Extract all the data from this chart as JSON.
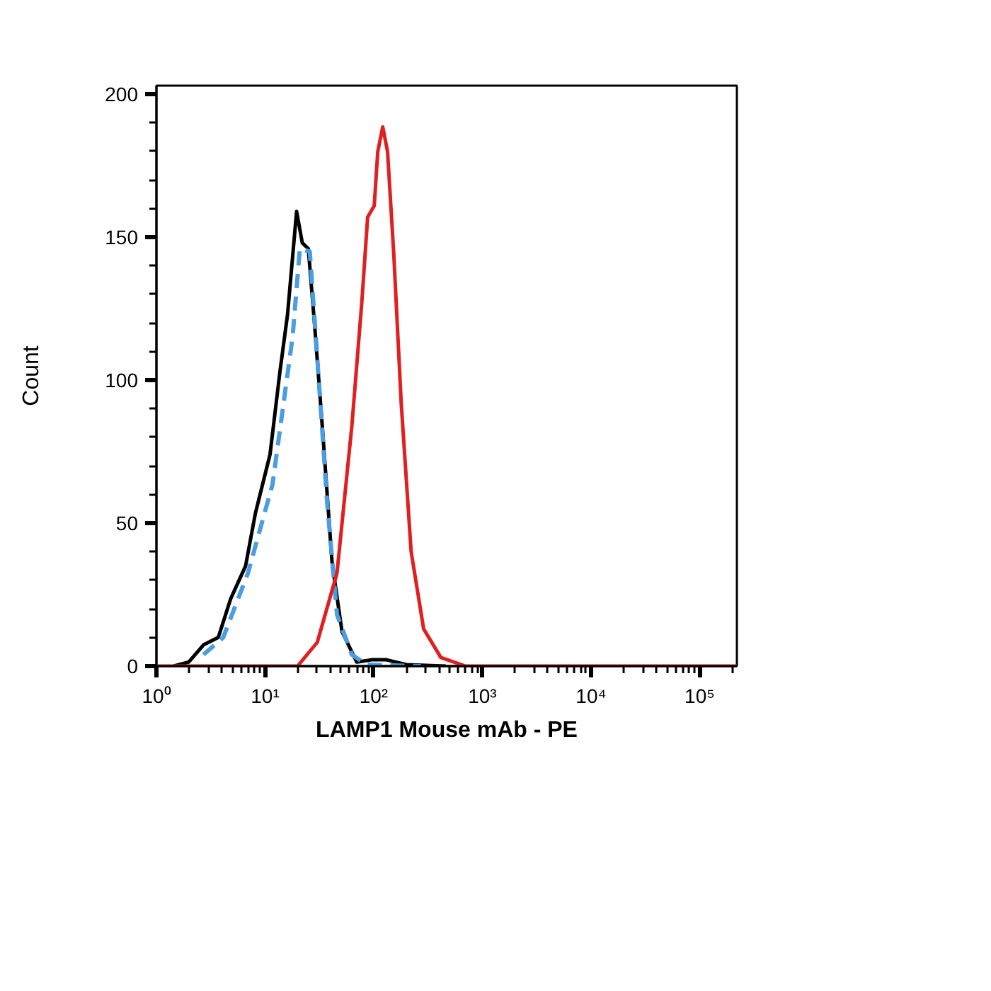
{
  "chart_data": {
    "type": "line",
    "xlabel": "LAMP1 Mouse mAb - PE",
    "ylabel": "Count",
    "log": "x",
    "grid": false,
    "xlim": [
      1,
      220000
    ],
    "ylim": [
      0,
      203
    ],
    "xticks": [
      {
        "value": 1,
        "label": "10⁰"
      },
      {
        "value": 10,
        "label": "10¹"
      },
      {
        "value": 100,
        "label": "10²"
      },
      {
        "value": 1000,
        "label": "10³"
      },
      {
        "value": 10000,
        "label": "10⁴"
      },
      {
        "value": 100000,
        "label": "10⁵"
      }
    ],
    "yticks": [
      0,
      50,
      100,
      150,
      200
    ],
    "series": [
      {
        "color": "#000000",
        "line_style": "solid",
        "x": [
          1.44,
          1.98,
          2.71,
          3.71,
          4.82,
          6.61,
          8.15,
          11.1,
          13.7,
          16.1,
          19.5,
          22.0,
          25.0,
          28.6,
          33.6,
          41.4,
          51.1,
          69.8,
          95.7,
          131,
          200,
          461
        ],
        "values": [
          0,
          1.4,
          7.4,
          10,
          23.5,
          35,
          53.5,
          74,
          103,
          123,
          159,
          148,
          146,
          119,
          84,
          36,
          12,
          1.4,
          2.2,
          2.2,
          0.5,
          0
        ]
      },
      {
        "color": "#4a9de0",
        "line_style": "dashed",
        "x": [
          2.71,
          4.12,
          6.95,
          11.7,
          17.9,
          20.9,
          25.8,
          30.2,
          37.2,
          45.9,
          62.9,
          86.1,
          273
        ],
        "values": [
          4,
          10,
          32.5,
          63.5,
          115,
          146,
          145,
          108,
          57.5,
          18,
          4,
          0.5,
          0
        ]
      },
      {
        "color": "#e02020",
        "line_style": "solid",
        "x": [
          1,
          19.9,
          30.2,
          45.9,
          63.0,
          77.6,
          87.9,
          101,
          109,
          121,
          134,
          153,
          179,
          221,
          288,
          415,
          701,
          220000
        ],
        "values": [
          0,
          0,
          8.3,
          32.5,
          84.3,
          127,
          157,
          161,
          180,
          188.6,
          180,
          144,
          92,
          40,
          13,
          3,
          0,
          0
        ]
      }
    ]
  }
}
